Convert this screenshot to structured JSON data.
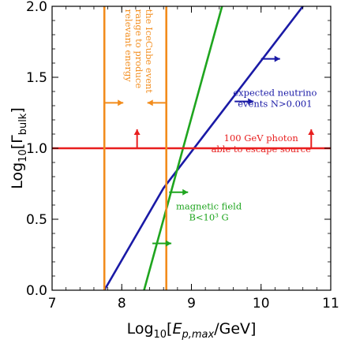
{
  "chart_data": {
    "type": "line",
    "title": "",
    "xlabel_prefix": "Log",
    "xlabel_sub": "10",
    "xlabel_open": "[",
    "xlabel_var": "E",
    "xlabel_var_sub": "p,max",
    "xlabel_tail": "/GeV]",
    "ylabel_prefix": "Log",
    "ylabel_sub": "10",
    "ylabel_open": "[Γ",
    "ylabel_var_sub": "bulk",
    "ylabel_tail": "]",
    "xlim": [
      7,
      11
    ],
    "ylim": [
      0,
      2
    ],
    "x_ticks": [
      7,
      8,
      9,
      10,
      11
    ],
    "x_tick_labels": [
      "7",
      "8",
      "9",
      "10",
      "11"
    ],
    "y_ticks": [
      0,
      0.5,
      1,
      1.5,
      2
    ],
    "y_tick_labels": [
      "0.0",
      "0.5",
      "1.0",
      "1.5",
      "2.0"
    ],
    "grid": false,
    "series": [
      {
        "key": "neutrino",
        "color": "#1a1aa6",
        "x": [
          7.75,
          8.6,
          10.6
        ],
        "y": [
          0,
          0.72,
          2.0
        ]
      },
      {
        "key": "magnetic",
        "color": "#1fa51f",
        "x": [
          8.32,
          9.44
        ],
        "y": [
          0,
          2.0
        ]
      },
      {
        "key": "photon",
        "color": "#e81e1e",
        "x": [
          7,
          11
        ],
        "y": [
          1.0,
          1.0
        ]
      },
      {
        "key": "energy_low",
        "color": "#f28c1c",
        "x": [
          7.75,
          7.75
        ],
        "y": [
          0,
          2.0
        ]
      },
      {
        "key": "energy_high",
        "color": "#f28c1c",
        "x": [
          8.64,
          8.64
        ],
        "y": [
          0,
          2.0
        ]
      }
    ],
    "annotations": [
      {
        "key": "neutrino_label",
        "color": "#1a1aa6",
        "lines": [
          "expected neutrino",
          "events N>0.001"
        ],
        "x": 10.2,
        "y": 1.37
      },
      {
        "key": "photon_label",
        "color": "#e81e1e",
        "lines": [
          "100 GeV photon",
          "able to escape source"
        ],
        "x": 10.0,
        "y": 1.05
      },
      {
        "key": "magnetic_label",
        "color": "#1fa51f",
        "lines": [
          "magnetic field",
          "B<10³ G"
        ],
        "x": 9.25,
        "y": 0.57
      },
      {
        "key": "energy_label",
        "color": "#f28c1c",
        "lines": [
          "relevant energy",
          "range to produce",
          "the IceCube event"
        ],
        "x": 8.2,
        "y": 1.98
      }
    ],
    "arrows": [
      {
        "color": "#1a1aa6",
        "x": 10.0,
        "y": 1.63,
        "dir": "right"
      },
      {
        "color": "#1a1aa6",
        "x": 9.62,
        "y": 1.33,
        "dir": "right"
      },
      {
        "color": "#e81e1e",
        "x": 8.22,
        "y": 1.0,
        "dir": "up"
      },
      {
        "color": "#e81e1e",
        "x": 10.72,
        "y": 1.0,
        "dir": "up"
      },
      {
        "color": "#1fa51f",
        "x": 8.68,
        "y": 0.69,
        "dir": "right"
      },
      {
        "color": "#1fa51f",
        "x": 8.44,
        "y": 0.33,
        "dir": "right"
      },
      {
        "color": "#f28c1c",
        "x": 7.75,
        "y": 1.32,
        "dir": "right"
      },
      {
        "color": "#f28c1c",
        "x": 8.64,
        "y": 1.32,
        "dir": "left"
      }
    ]
  }
}
